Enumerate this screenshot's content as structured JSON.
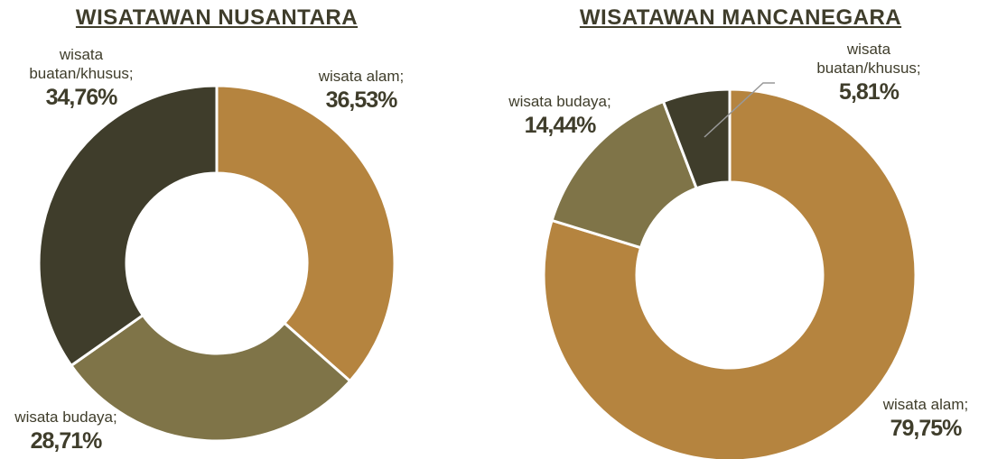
{
  "chart_data": [
    {
      "type": "donut",
      "title": "WISATAWAN NUSANTARA",
      "categories": [
        "wisata alam;",
        "wisata budaya;",
        "wisata buatan/khusus;"
      ],
      "values": [
        36.53,
        28.71,
        34.76
      ],
      "value_labels": [
        "36,53%",
        "28,71%",
        "34,76%"
      ],
      "colors": [
        "#b5843f",
        "#7f7448",
        "#3f3d2b"
      ]
    },
    {
      "type": "donut",
      "title": "WISATAWAN MANCANEGARA",
      "categories": [
        "wisata alam;",
        "wisata budaya;",
        "wisata buatan/khusus;"
      ],
      "values": [
        79.75,
        14.44,
        5.81
      ],
      "value_labels": [
        "79,75%",
        "14,44%",
        "5,81%"
      ],
      "colors": [
        "#b5843f",
        "#7f7448",
        "#3f3d2b"
      ]
    }
  ]
}
